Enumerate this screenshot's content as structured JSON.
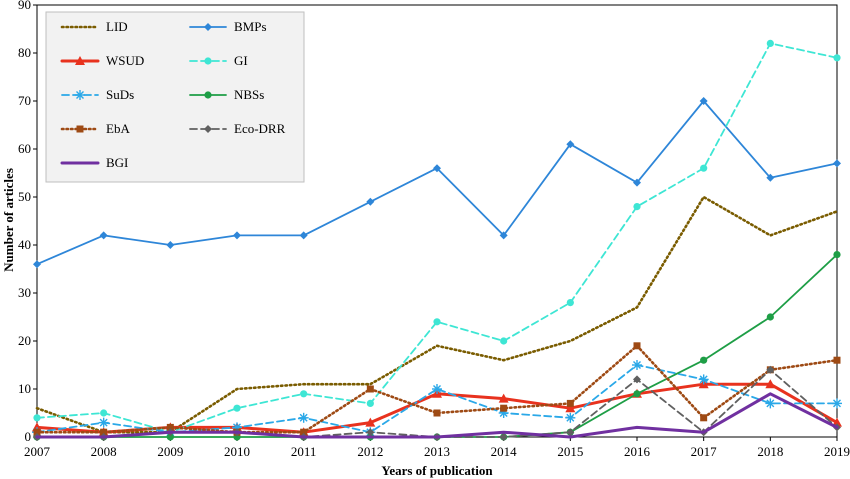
{
  "chart_data": {
    "type": "line",
    "title": "",
    "xlabel": "Years of publication",
    "ylabel": "Number of articles",
    "x": [
      2007,
      2008,
      2009,
      2010,
      2011,
      2012,
      2013,
      2014,
      2015,
      2016,
      2017,
      2018,
      2019
    ],
    "ylim": [
      0,
      90
    ],
    "yticks": [
      0,
      10,
      20,
      30,
      40,
      50,
      60,
      70,
      80,
      90
    ],
    "grid": false,
    "legend_position": "top-left",
    "series": [
      {
        "name": "LID",
        "color": "#7a5c00",
        "dash": "dotted",
        "marker": "none",
        "values": [
          6,
          1,
          1,
          10,
          11,
          11,
          19,
          16,
          20,
          27,
          50,
          42,
          47
        ]
      },
      {
        "name": "BMPs",
        "color": "#2e86d8",
        "dash": "solid",
        "marker": "diamond",
        "values": [
          36,
          42,
          40,
          42,
          42,
          49,
          56,
          42,
          61,
          53,
          70,
          54,
          57
        ]
      },
      {
        "name": "WSUD",
        "color": "#e8321e",
        "dash": "solid-thick",
        "marker": "triangle",
        "values": [
          2,
          1,
          2,
          2,
          1,
          3,
          9,
          8,
          6,
          9,
          11,
          11,
          3
        ]
      },
      {
        "name": "GI",
        "color": "#3ee6d4",
        "dash": "dashed",
        "marker": "circle",
        "values": [
          4,
          5,
          1,
          6,
          9,
          7,
          24,
          20,
          28,
          48,
          56,
          82,
          79
        ]
      },
      {
        "name": "SuDs",
        "color": "#2aa8e8",
        "dash": "dashed",
        "marker": "asterisk",
        "values": [
          1,
          3,
          1,
          2,
          4,
          1,
          10,
          5,
          4,
          15,
          12,
          7,
          7
        ]
      },
      {
        "name": "NBSs",
        "color": "#1e9e46",
        "dash": "solid",
        "marker": "circle",
        "values": [
          0,
          0,
          0,
          0,
          0,
          0,
          0,
          0,
          1,
          9,
          16,
          25,
          38
        ]
      },
      {
        "name": "EbA",
        "color": "#9e4a14",
        "dash": "dotted",
        "marker": "square",
        "values": [
          1,
          1,
          2,
          1,
          1,
          10,
          5,
          6,
          7,
          19,
          4,
          14,
          16
        ]
      },
      {
        "name": "Eco-DRR",
        "color": "#606060",
        "dash": "dashed",
        "marker": "diamond",
        "values": [
          0,
          0,
          1,
          1,
          0,
          1,
          0,
          0,
          1,
          12,
          1,
          14,
          2
        ]
      },
      {
        "name": "BGI",
        "color": "#7030a0",
        "dash": "solid-thick",
        "marker": "none",
        "values": [
          0,
          0,
          1,
          1,
          0,
          0,
          0,
          1,
          0,
          2,
          1,
          9,
          2
        ]
      }
    ]
  }
}
